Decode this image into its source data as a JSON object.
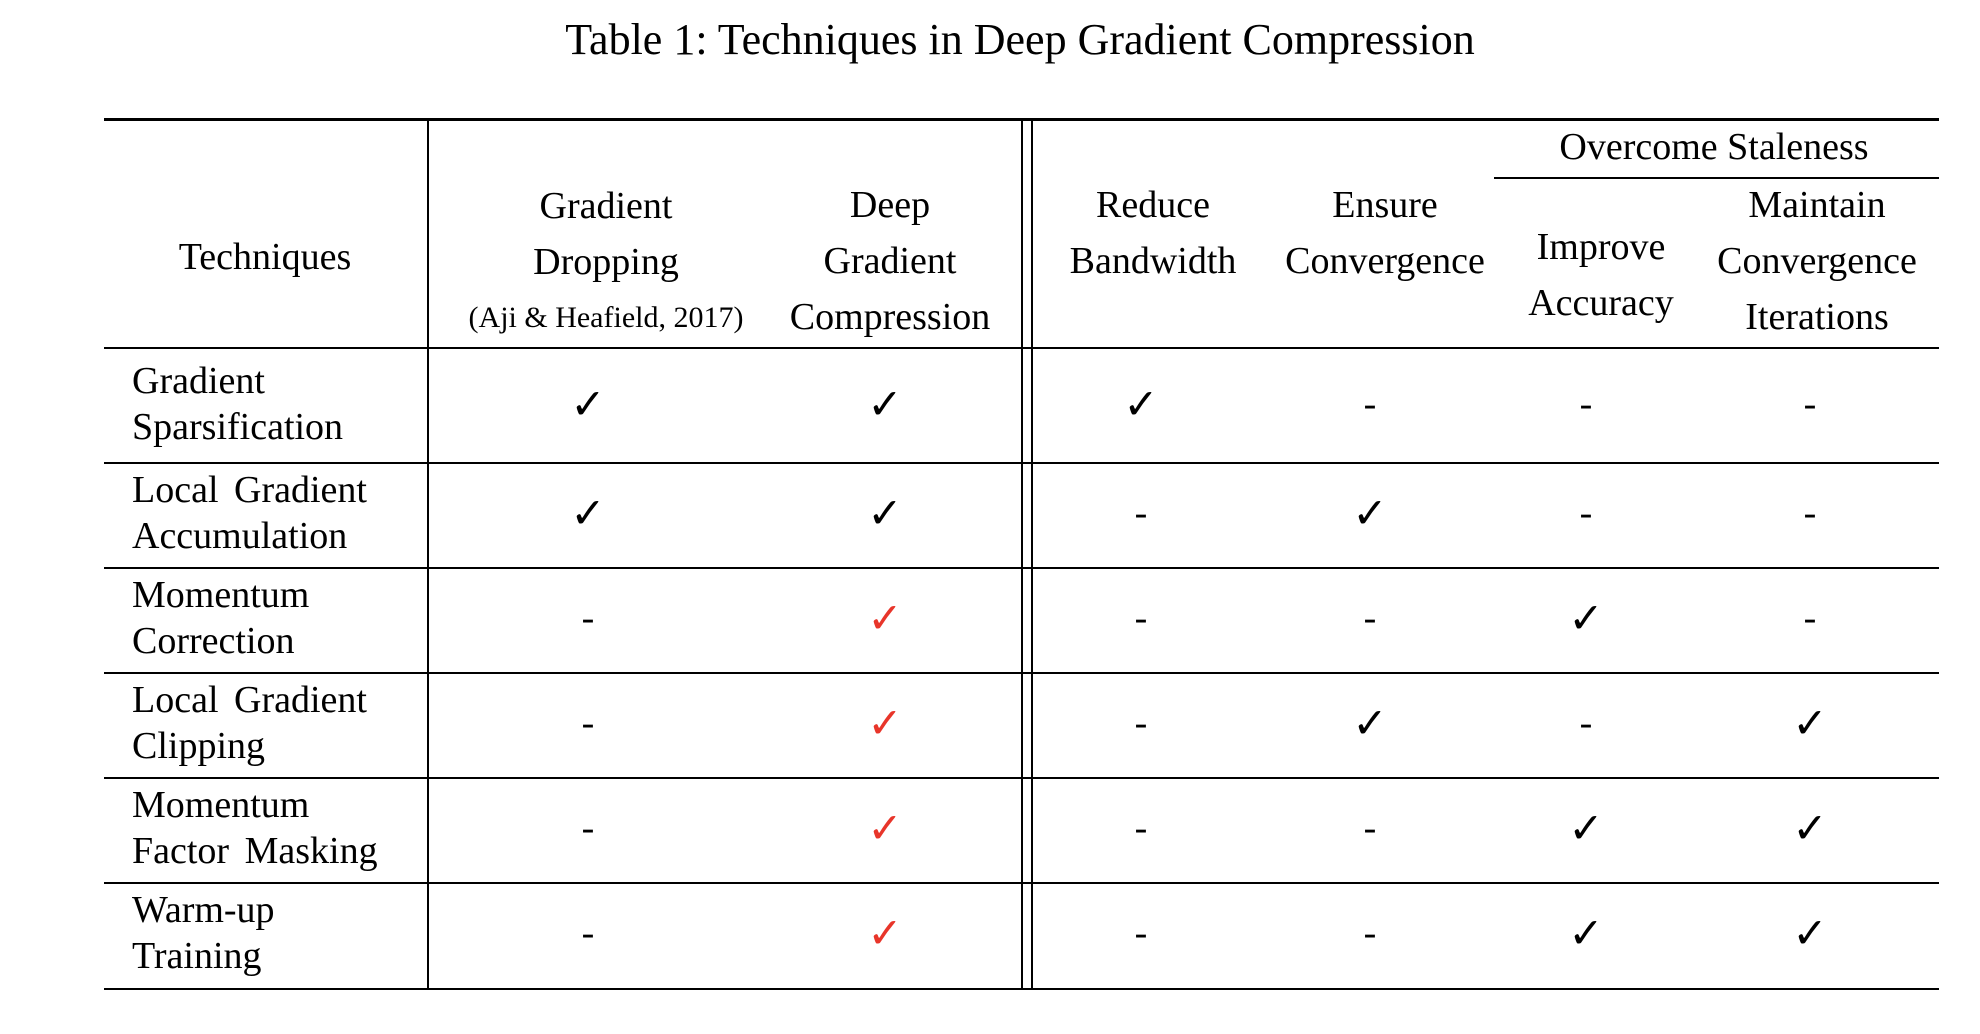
{
  "title": "Table 1: Techniques in Deep Gradient Compression",
  "colors": {
    "highlight_check": "#e8352a",
    "text": "#000000"
  },
  "header": {
    "techniques": "Techniques",
    "gradient_dropping": [
      "Gradient",
      "Dropping"
    ],
    "gradient_dropping_cite": "(Aji & Heafield, 2017)",
    "dgc": [
      "Deep",
      "Gradient",
      "Compression"
    ],
    "reduce_bandwidth": [
      "Reduce",
      "Bandwidth"
    ],
    "ensure_convergence": [
      "Ensure",
      "Convergence"
    ],
    "overcome_staleness": "Overcome Staleness",
    "improve_accuracy": [
      "Improve",
      "Accuracy"
    ],
    "maintain_convergence": [
      "Maintain",
      "Convergence",
      "Iterations"
    ]
  },
  "rows": [
    {
      "technique": [
        "Gradient",
        "Sparsification"
      ],
      "cells": [
        "check",
        "check",
        "check",
        "-",
        "-",
        "-"
      ]
    },
    {
      "technique": [
        "Local Gradient",
        "Accumulation"
      ],
      "cells": [
        "check",
        "check",
        "-",
        "check",
        "-",
        "-"
      ]
    },
    {
      "technique": [
        "Momentum",
        "Correction"
      ],
      "cells": [
        "-",
        "check-red",
        "-",
        "-",
        "check",
        "-"
      ]
    },
    {
      "technique": [
        "Local Gradient",
        "Clipping"
      ],
      "cells": [
        "-",
        "check-red",
        "-",
        "check",
        "-",
        "check"
      ]
    },
    {
      "technique": [
        "Momentum",
        "Factor Masking"
      ],
      "cells": [
        "-",
        "check-red",
        "-",
        "-",
        "check",
        "check"
      ]
    },
    {
      "technique": [
        "Warm-up",
        "Training"
      ],
      "cells": [
        "-",
        "check-red",
        "-",
        "-",
        "check",
        "check"
      ]
    }
  ],
  "symbols": {
    "check": "✓",
    "dash": "-"
  }
}
